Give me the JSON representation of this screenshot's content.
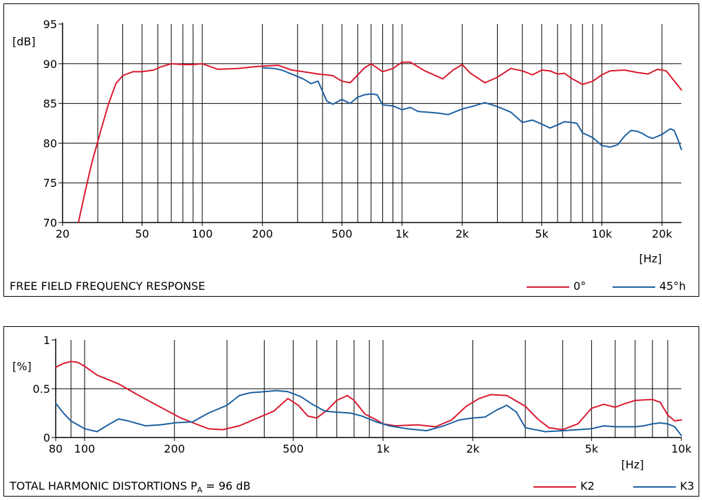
{
  "chart_data": [
    {
      "type": "line",
      "title": "FREE FIELD FREQUENCY RESPONSE",
      "xscale": "log",
      "xlim": [
        20,
        25000
      ],
      "ylim": [
        70,
        95
      ],
      "xlabel": "[Hz]",
      "ylabel": "[dB]",
      "x_ticks": [
        20,
        50,
        100,
        200,
        500,
        1000,
        2000,
        5000,
        10000,
        20000
      ],
      "x_tick_labels": [
        "20",
        "50",
        "100",
        "200",
        "500",
        "1k",
        "2k",
        "5k",
        "10k",
        "20k"
      ],
      "y_ticks": [
        70,
        75,
        80,
        85,
        90,
        95
      ],
      "y_tick_labels": [
        "70",
        "75",
        "80",
        "85",
        "90",
        "95"
      ],
      "grid": true,
      "legend": "bottom-right",
      "series": [
        {
          "name": "0°",
          "color": "#d9182d",
          "x": [
            24,
            26,
            28,
            31,
            34,
            37,
            40,
            45,
            50,
            57,
            62,
            70,
            80,
            90,
            100,
            120,
            150,
            180,
            200,
            240,
            280,
            320,
            380,
            450,
            500,
            550,
            650,
            700,
            800,
            900,
            1000,
            1100,
            1300,
            1600,
            1800,
            2000,
            2200,
            2600,
            3000,
            3500,
            4000,
            4500,
            5000,
            5500,
            6000,
            6500,
            7000,
            8000,
            9000,
            10000,
            11000,
            13000,
            15000,
            17000,
            19000,
            21000,
            25000
          ],
          "y": [
            70,
            74,
            77.5,
            81.5,
            85,
            87.5,
            88.5,
            89,
            89,
            89.2,
            89.6,
            90,
            89.9,
            89.9,
            90,
            89.3,
            89.4,
            89.6,
            89.7,
            89.8,
            89.2,
            89,
            88.7,
            88.5,
            87.8,
            87.6,
            89.5,
            90,
            89,
            89.4,
            90.2,
            90.2,
            89.1,
            88.1,
            89.2,
            89.9,
            88.8,
            87.6,
            88.3,
            89.4,
            89.1,
            88.6,
            89.2,
            89.1,
            88.7,
            88.8,
            88.2,
            87.4,
            87.8,
            88.6,
            89.1,
            89.2,
            88.9,
            88.7,
            89.3,
            89.1,
            86.7
          ]
        },
        {
          "name": "45°h",
          "color": "#1b5fa0",
          "x": [
            200,
            230,
            250,
            280,
            320,
            350,
            380,
            420,
            450,
            500,
            550,
            600,
            650,
            700,
            750,
            800,
            900,
            1000,
            1100,
            1200,
            1500,
            1700,
            2000,
            2300,
            2600,
            3000,
            3500,
            4000,
            4500,
            5000,
            5500,
            6000,
            6500,
            7000,
            7500,
            8000,
            9000,
            10000,
            11000,
            12000,
            13000,
            14000,
            15000,
            16000,
            17000,
            18000,
            20000,
            22000,
            23000,
            24000,
            25000
          ],
          "y": [
            89.5,
            89.4,
            89.2,
            88.7,
            88.1,
            87.5,
            87.8,
            85.3,
            84.9,
            85.5,
            85,
            85.8,
            86.1,
            86.2,
            86.1,
            84.8,
            84.7,
            84.2,
            84.5,
            84,
            83.8,
            83.6,
            84.3,
            84.7,
            85.1,
            84.6,
            83.9,
            82.6,
            82.9,
            82.4,
            81.9,
            82.3,
            82.7,
            82.6,
            82.5,
            81.3,
            80.7,
            79.7,
            79.5,
            79.8,
            80.9,
            81.6,
            81.5,
            81.2,
            80.8,
            80.6,
            81.1,
            81.8,
            81.6,
            80.5,
            79.2
          ]
        }
      ]
    },
    {
      "type": "line",
      "title": "TOTAL HARMONIC DISTORTIONS P",
      "title_subscript": "A",
      "title_suffix": " = 96 dB",
      "xscale": "log",
      "xlim": [
        80,
        10000
      ],
      "ylim": [
        0,
        1
      ],
      "xlabel": "[Hz]",
      "ylabel": "[%]",
      "x_ticks": [
        80,
        100,
        200,
        500,
        1000,
        2000,
        5000,
        10000
      ],
      "x_tick_labels": [
        "80",
        "100",
        "200",
        "500",
        "1k",
        "2k",
        "5k",
        "10k"
      ],
      "y_ticks": [
        0,
        0.5,
        1
      ],
      "y_tick_labels": [
        "0",
        "0.5",
        "1"
      ],
      "grid": true,
      "legend": "bottom-right",
      "series": [
        {
          "name": "K2",
          "color": "#d9182d",
          "x": [
            80,
            85,
            90,
            95,
            100,
            110,
            130,
            150,
            180,
            210,
            240,
            260,
            290,
            330,
            380,
            430,
            480,
            520,
            560,
            600,
            650,
            700,
            760,
            800,
            870,
            950,
            1000,
            1100,
            1300,
            1500,
            1700,
            1900,
            2100,
            2300,
            2600,
            3000,
            3300,
            3600,
            4000,
            4500,
            5000,
            5500,
            6000,
            6500,
            7000,
            8000,
            8500,
            9000,
            9500,
            10000
          ],
          "y": [
            0.72,
            0.76,
            0.78,
            0.77,
            0.73,
            0.64,
            0.55,
            0.44,
            0.31,
            0.2,
            0.13,
            0.09,
            0.08,
            0.12,
            0.2,
            0.27,
            0.4,
            0.33,
            0.22,
            0.2,
            0.28,
            0.38,
            0.43,
            0.38,
            0.24,
            0.18,
            0.14,
            0.12,
            0.13,
            0.11,
            0.18,
            0.32,
            0.4,
            0.44,
            0.43,
            0.32,
            0.19,
            0.1,
            0.08,
            0.14,
            0.3,
            0.34,
            0.31,
            0.35,
            0.38,
            0.39,
            0.36,
            0.23,
            0.17,
            0.18
          ]
        },
        {
          "name": "K3",
          "color": "#1b5fa0",
          "x": [
            80,
            85,
            90,
            100,
            110,
            120,
            130,
            140,
            160,
            180,
            200,
            230,
            260,
            300,
            330,
            360,
            400,
            440,
            480,
            530,
            580,
            640,
            700,
            780,
            850,
            950,
            1050,
            1200,
            1400,
            1600,
            1800,
            2000,
            2200,
            2400,
            2600,
            2800,
            3000,
            3500,
            4000,
            5000,
            5500,
            6000,
            7000,
            7500,
            8000,
            8500,
            9000,
            9500,
            10000
          ],
          "y": [
            0.35,
            0.25,
            0.17,
            0.09,
            0.06,
            0.13,
            0.19,
            0.17,
            0.12,
            0.13,
            0.15,
            0.16,
            0.25,
            0.33,
            0.43,
            0.46,
            0.47,
            0.48,
            0.47,
            0.42,
            0.34,
            0.27,
            0.26,
            0.25,
            0.22,
            0.16,
            0.12,
            0.09,
            0.07,
            0.12,
            0.18,
            0.2,
            0.21,
            0.28,
            0.33,
            0.26,
            0.1,
            0.06,
            0.07,
            0.09,
            0.12,
            0.11,
            0.11,
            0.12,
            0.14,
            0.15,
            0.14,
            0.11,
            0.02
          ]
        }
      ]
    }
  ]
}
